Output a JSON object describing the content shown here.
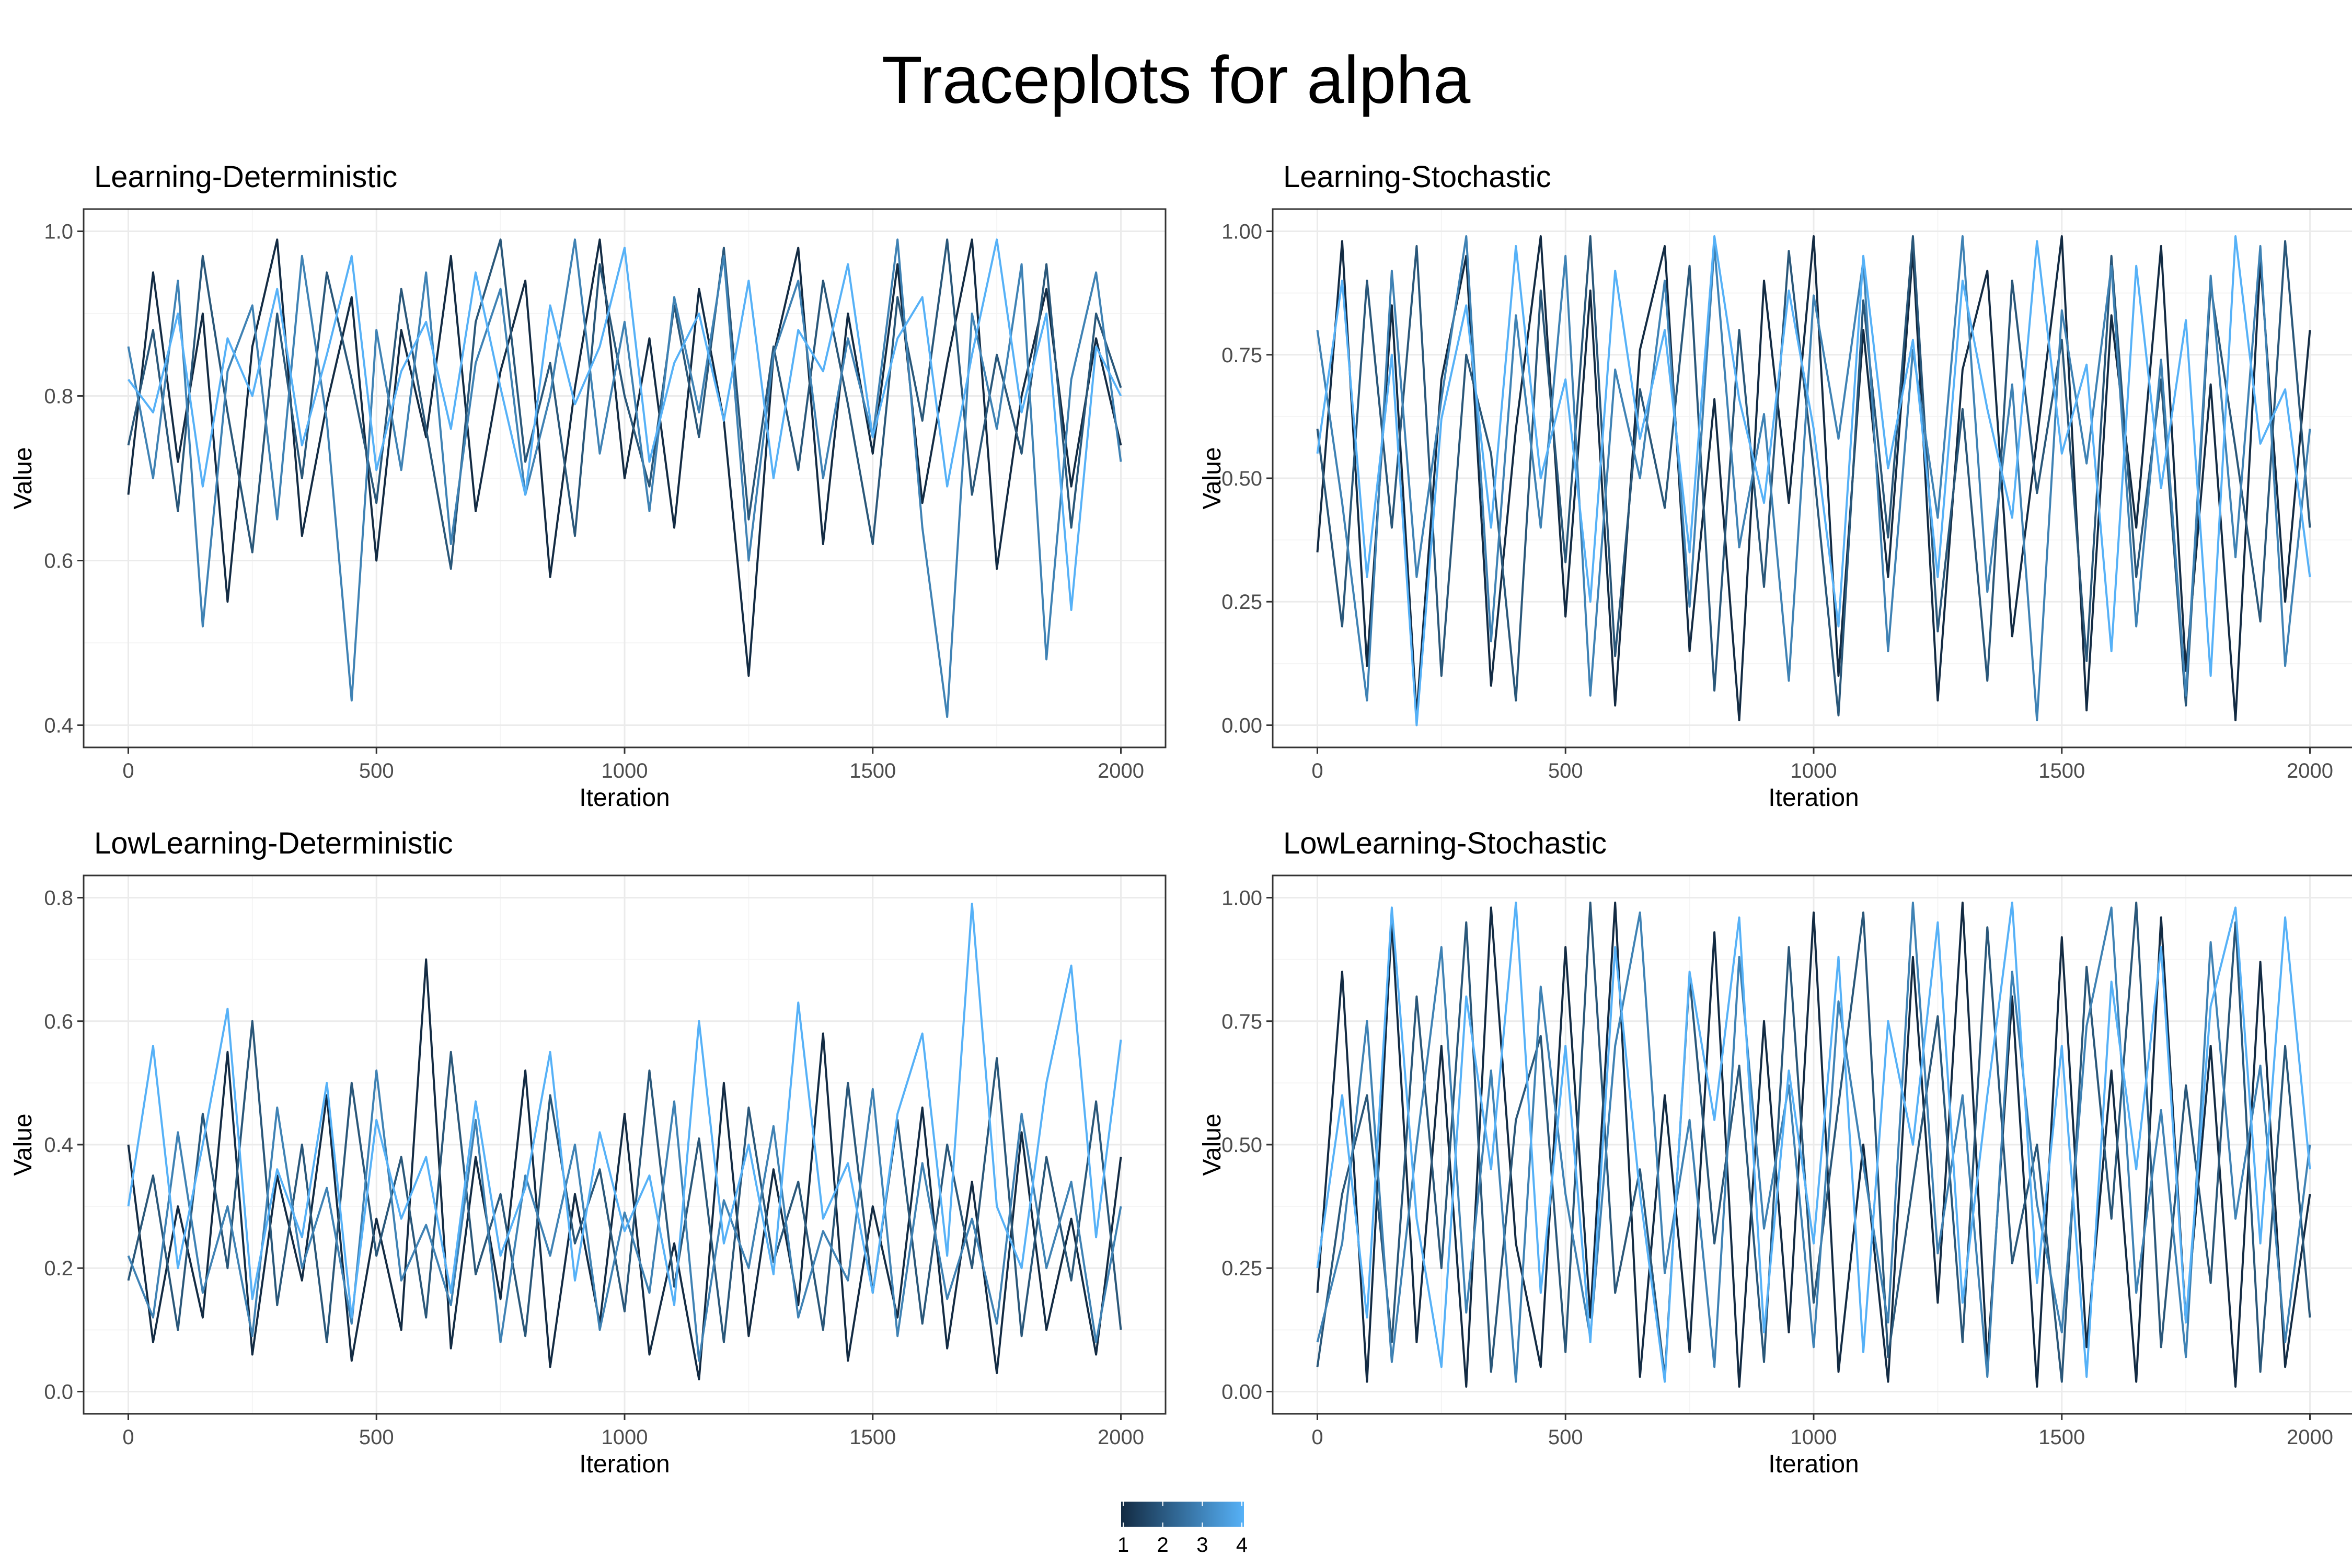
{
  "title": "Traceplots for alpha",
  "colors": {
    "chain_1": "#132b43",
    "chain_2": "#2a5779",
    "chain_3": "#3f82b4",
    "chain_4": "#56b1f7",
    "grid_major": "#ebebeb",
    "grid_minor": "#f5f5f5",
    "panel_border": "#333333"
  },
  "legend": {
    "type": "colorbar",
    "labels": [
      "1",
      "2",
      "3",
      "4"
    ],
    "low_color": "#132b43",
    "high_color": "#56b1f7"
  },
  "chart_data": [
    {
      "type": "line",
      "title": "Learning-Deterministic",
      "xlabel": "Iteration",
      "ylabel": "Value",
      "xlim": [
        0,
        2000
      ],
      "ylim": [
        0.4,
        1.0
      ],
      "xticks": [
        0,
        500,
        1000,
        1500,
        2000
      ],
      "xtick_labels": [
        "0",
        "500",
        "1000",
        "1500",
        "2000"
      ],
      "yticks": [
        0.4,
        0.6,
        0.8,
        1.0
      ],
      "ytick_labels": [
        "0.4",
        "0.6",
        "0.8",
        "1.0"
      ],
      "grid": true,
      "series": [
        {
          "name": "1",
          "values": [
            0.68,
            0.95,
            0.72,
            0.9,
            0.55,
            0.86,
            0.99,
            0.63,
            0.79,
            0.92,
            0.6,
            0.88,
            0.75,
            0.97,
            0.66,
            0.83,
            0.94,
            0.58,
            0.81,
            0.99,
            0.7,
            0.87,
            0.64,
            0.93,
            0.77,
            0.46,
            0.85,
            0.98,
            0.62,
            0.9,
            0.73,
            0.96,
            0.67,
            0.84,
            0.99,
            0.59,
            0.8,
            0.93,
            0.69,
            0.87,
            0.74
          ]
        },
        {
          "name": "2",
          "values": [
            0.74,
            0.88,
            0.66,
            0.97,
            0.78,
            0.61,
            0.9,
            0.7,
            0.95,
            0.82,
            0.67,
            0.93,
            0.76,
            0.59,
            0.89,
            0.99,
            0.72,
            0.84,
            0.63,
            0.96,
            0.8,
            0.69,
            0.91,
            0.75,
            0.98,
            0.65,
            0.86,
            0.71,
            0.94,
            0.79,
            0.62,
            0.92,
            0.77,
            0.99,
            0.68,
            0.85,
            0.73,
            0.96,
            0.64,
            0.9,
            0.81
          ]
        },
        {
          "name": "3",
          "values": [
            0.86,
            0.7,
            0.94,
            0.52,
            0.83,
            0.91,
            0.65,
            0.97,
            0.77,
            0.43,
            0.88,
            0.71,
            0.95,
            0.62,
            0.84,
            0.93,
            0.68,
            0.8,
            0.99,
            0.73,
            0.89,
            0.66,
            0.92,
            0.78,
            0.97,
            0.6,
            0.85,
            0.94,
            0.7,
            0.87,
            0.75,
            0.99,
            0.64,
            0.41,
            0.9,
            0.76,
            0.96,
            0.48,
            0.82,
            0.95,
            0.72
          ]
        },
        {
          "name": "4",
          "values": [
            0.82,
            0.78,
            0.9,
            0.69,
            0.87,
            0.8,
            0.93,
            0.74,
            0.85,
            0.97,
            0.71,
            0.83,
            0.89,
            0.76,
            0.95,
            0.81,
            0.68,
            0.91,
            0.79,
            0.86,
            0.98,
            0.72,
            0.84,
            0.9,
            0.77,
            0.94,
            0.7,
            0.88,
            0.83,
            0.96,
            0.75,
            0.87,
            0.92,
            0.69,
            0.85,
            0.99,
            0.78,
            0.9,
            0.54,
            0.86,
            0.8
          ]
        }
      ]
    },
    {
      "type": "line",
      "title": "Learning-Stochastic",
      "xlabel": "Iteration",
      "ylabel": "Value",
      "xlim": [
        0,
        2000
      ],
      "ylim": [
        0,
        1
      ],
      "xticks": [
        0,
        500,
        1000,
        1500,
        2000
      ],
      "xtick_labels": [
        "0",
        "500",
        "1000",
        "1500",
        "2000"
      ],
      "yticks": [
        0,
        0.25,
        0.5,
        0.75,
        1.0
      ],
      "ytick_labels": [
        "0.00",
        "0.25",
        "0.50",
        "0.75",
        "1.00"
      ],
      "grid": true,
      "series": [
        {
          "name": "1",
          "values": [
            0.35,
            0.98,
            0.12,
            0.85,
            0.02,
            0.7,
            0.95,
            0.08,
            0.6,
            0.99,
            0.22,
            0.88,
            0.04,
            0.76,
            0.97,
            0.15,
            0.66,
            0.01,
            0.9,
            0.45,
            0.99,
            0.1,
            0.8,
            0.3,
            0.96,
            0.05,
            0.72,
            0.92,
            0.18,
            0.58,
            0.99,
            0.03,
            0.83,
            0.4,
            0.97,
            0.11,
            0.69,
            0.01,
            0.94,
            0.25,
            0.8
          ]
        },
        {
          "name": "2",
          "values": [
            0.6,
            0.2,
            0.9,
            0.4,
            0.97,
            0.1,
            0.75,
            0.55,
            0.05,
            0.88,
            0.33,
            0.99,
            0.14,
            0.68,
            0.44,
            0.93,
            0.07,
            0.8,
            0.28,
            0.96,
            0.52,
            0.02,
            0.86,
            0.38,
            0.99,
            0.19,
            0.64,
            0.09,
            0.9,
            0.47,
            0.78,
            0.13,
            0.95,
            0.3,
            0.7,
            0.04,
            0.89,
            0.56,
            0.21,
            0.98,
            0.4
          ]
        },
        {
          "name": "3",
          "values": [
            0.8,
            0.45,
            0.05,
            0.92,
            0.3,
            0.66,
            0.99,
            0.17,
            0.83,
            0.4,
            0.95,
            0.06,
            0.72,
            0.5,
            0.9,
            0.24,
            0.97,
            0.36,
            0.63,
            0.09,
            0.87,
            0.58,
            0.94,
            0.15,
            0.76,
            0.42,
            0.99,
            0.27,
            0.69,
            0.01,
            0.84,
            0.53,
            0.93,
            0.2,
            0.74,
            0.06,
            0.91,
            0.34,
            0.97,
            0.12,
            0.6
          ]
        },
        {
          "name": "4",
          "values": [
            0.55,
            0.9,
            0.3,
            0.75,
            0.0,
            0.62,
            0.85,
            0.4,
            0.97,
            0.5,
            0.7,
            0.25,
            0.92,
            0.58,
            0.8,
            0.35,
            0.99,
            0.66,
            0.45,
            0.88,
            0.6,
            0.2,
            0.95,
            0.52,
            0.78,
            0.3,
            0.9,
            0.64,
            0.42,
            0.98,
            0.55,
            0.73,
            0.15,
            0.93,
            0.48,
            0.82,
            0.1,
            0.99,
            0.57,
            0.68,
            0.3
          ]
        }
      ]
    },
    {
      "type": "line",
      "title": "LowLearning-Deterministic",
      "xlabel": "Iteration",
      "ylabel": "Value",
      "xlim": [
        0,
        2000
      ],
      "ylim": [
        0,
        0.8
      ],
      "xticks": [
        0,
        500,
        1000,
        1500,
        2000
      ],
      "xtick_labels": [
        "0",
        "500",
        "1000",
        "1500",
        "2000"
      ],
      "yticks": [
        0,
        0.2,
        0.4,
        0.6,
        0.8
      ],
      "ytick_labels": [
        "0.0",
        "0.2",
        "0.4",
        "0.6",
        "0.8"
      ],
      "grid": true,
      "series": [
        {
          "name": "1",
          "values": [
            0.4,
            0.08,
            0.3,
            0.12,
            0.55,
            0.06,
            0.35,
            0.18,
            0.48,
            0.05,
            0.28,
            0.1,
            0.7,
            0.07,
            0.38,
            0.15,
            0.52,
            0.04,
            0.32,
            0.11,
            0.45,
            0.06,
            0.24,
            0.02,
            0.5,
            0.09,
            0.36,
            0.14,
            0.58,
            0.05,
            0.3,
            0.12,
            0.46,
            0.07,
            0.34,
            0.03,
            0.42,
            0.1,
            0.28,
            0.06,
            0.38
          ]
        },
        {
          "name": "2",
          "values": [
            0.18,
            0.35,
            0.1,
            0.45,
            0.2,
            0.6,
            0.14,
            0.4,
            0.08,
            0.5,
            0.22,
            0.38,
            0.12,
            0.55,
            0.19,
            0.32,
            0.09,
            0.48,
            0.24,
            0.36,
            0.13,
            0.52,
            0.17,
            0.41,
            0.08,
            0.46,
            0.21,
            0.34,
            0.1,
            0.5,
            0.16,
            0.44,
            0.11,
            0.4,
            0.2,
            0.54,
            0.09,
            0.38,
            0.18,
            0.47,
            0.1
          ]
        },
        {
          "name": "3",
          "values": [
            0.22,
            0.12,
            0.42,
            0.16,
            0.3,
            0.09,
            0.46,
            0.2,
            0.33,
            0.11,
            0.52,
            0.18,
            0.27,
            0.14,
            0.44,
            0.08,
            0.35,
            0.22,
            0.4,
            0.1,
            0.29,
            0.16,
            0.47,
            0.05,
            0.31,
            0.2,
            0.43,
            0.12,
            0.26,
            0.18,
            0.49,
            0.09,
            0.37,
            0.15,
            0.28,
            0.11,
            0.45,
            0.2,
            0.34,
            0.08,
            0.3
          ]
        },
        {
          "name": "4",
          "values": [
            0.3,
            0.56,
            0.2,
            0.4,
            0.62,
            0.15,
            0.36,
            0.25,
            0.5,
            0.12,
            0.44,
            0.28,
            0.38,
            0.16,
            0.47,
            0.22,
            0.33,
            0.55,
            0.18,
            0.42,
            0.26,
            0.35,
            0.14,
            0.6,
            0.24,
            0.4,
            0.19,
            0.63,
            0.28,
            0.37,
            0.16,
            0.45,
            0.58,
            0.22,
            0.79,
            0.3,
            0.2,
            0.5,
            0.69,
            0.25,
            0.57
          ]
        }
      ]
    },
    {
      "type": "line",
      "title": "LowLearning-Stochastic",
      "xlabel": "Iteration",
      "ylabel": "Value",
      "xlim": [
        0,
        2000
      ],
      "ylim": [
        0,
        1
      ],
      "xticks": [
        0,
        500,
        1000,
        1500,
        2000
      ],
      "xtick_labels": [
        "0",
        "500",
        "1000",
        "1500",
        "2000"
      ],
      "yticks": [
        0,
        0.25,
        0.5,
        0.75,
        1.0
      ],
      "ytick_labels": [
        "0.00",
        "0.25",
        "0.50",
        "0.75",
        "1.00"
      ],
      "grid": true,
      "series": [
        {
          "name": "1",
          "values": [
            0.2,
            0.85,
            0.02,
            0.95,
            0.1,
            0.7,
            0.01,
            0.98,
            0.3,
            0.05,
            0.9,
            0.15,
            0.99,
            0.03,
            0.6,
            0.08,
            0.93,
            0.01,
            0.75,
            0.12,
            0.97,
            0.04,
            0.5,
            0.02,
            0.88,
            0.18,
            0.99,
            0.06,
            0.8,
            0.01,
            0.92,
            0.09,
            0.65,
            0.02,
            0.96,
            0.14,
            0.7,
            0.01,
            0.87,
            0.05,
            0.4
          ]
        },
        {
          "name": "2",
          "values": [
            0.05,
            0.4,
            0.6,
            0.1,
            0.8,
            0.25,
            0.95,
            0.04,
            0.55,
            0.72,
            0.08,
            0.99,
            0.2,
            0.45,
            0.03,
            0.84,
            0.3,
            0.66,
            0.06,
            0.9,
            0.18,
            0.58,
            0.97,
            0.07,
            0.42,
            0.76,
            0.1,
            0.94,
            0.26,
            0.5,
            0.02,
            0.86,
            0.35,
            0.99,
            0.09,
            0.62,
            0.22,
            0.95,
            0.04,
            0.7,
            0.15
          ]
        },
        {
          "name": "3",
          "values": [
            0.1,
            0.3,
            0.75,
            0.06,
            0.5,
            0.9,
            0.16,
            0.65,
            0.02,
            0.82,
            0.4,
            0.11,
            0.7,
            0.97,
            0.24,
            0.55,
            0.05,
            0.88,
            0.33,
            0.62,
            0.09,
            0.79,
            0.46,
            0.14,
            0.99,
            0.28,
            0.6,
            0.03,
            0.85,
            0.38,
            0.12,
            0.74,
            0.98,
            0.2,
            0.57,
            0.07,
            0.91,
            0.35,
            0.66,
            0.1,
            0.5
          ]
        },
        {
          "name": "4",
          "values": [
            0.25,
            0.6,
            0.15,
            0.98,
            0.35,
            0.05,
            0.8,
            0.45,
            0.99,
            0.2,
            0.7,
            0.1,
            0.9,
            0.4,
            0.02,
            0.85,
            0.55,
            0.96,
            0.12,
            0.65,
            0.3,
            0.88,
            0.08,
            0.75,
            0.5,
            0.95,
            0.18,
            0.6,
            0.99,
            0.22,
            0.7,
            0.03,
            0.83,
            0.45,
            0.9,
            0.14,
            0.78,
            0.98,
            0.3,
            0.96,
            0.45
          ]
        }
      ]
    }
  ]
}
